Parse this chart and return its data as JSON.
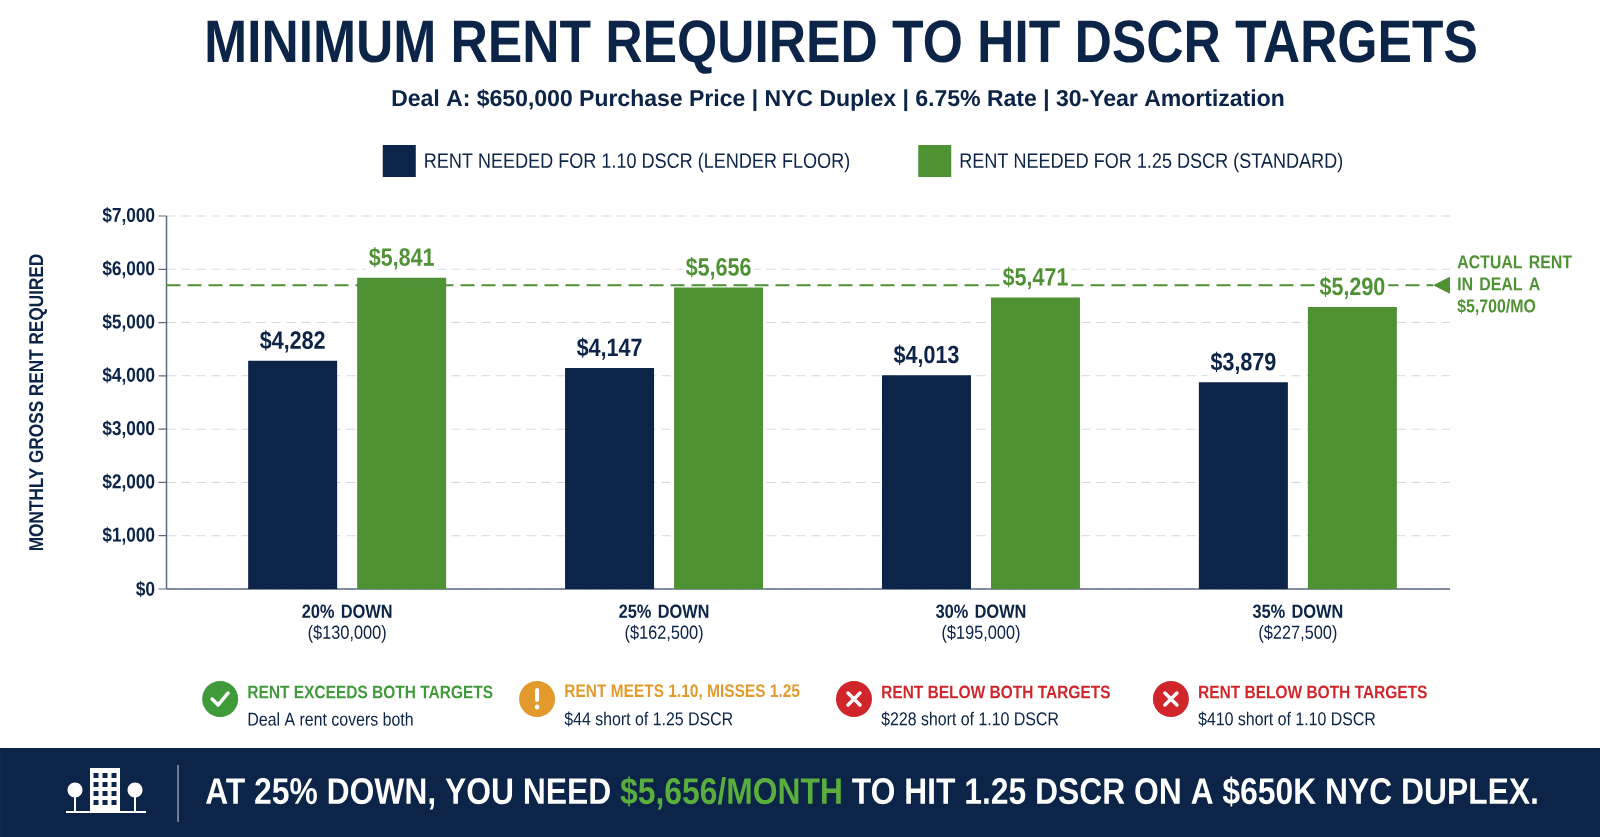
{
  "chart_data": {
    "type": "bar",
    "title": "MINIMUM RENT REQUIRED TO HIT DSCR TARGETS",
    "subtitle": "Deal A: $650,000 Purchase Price | NYC Duplex | 6.75% Rate | 30-Year Amortization",
    "ylabel": "MONTHLY GROSS RENT REQUIRED",
    "categories": [
      "**20% DOWN** ($130,000)",
      "**25% DOWN** ($162,500)",
      "**30% DOWN** ($195,000)",
      "**35% DOWN** ($227,500)"
    ],
    "series": [
      {
        "name": "RENT NEEDED FOR 1.10 DSCR (LENDER FLOOR)",
        "color": "#0b2447",
        "values": [
          4282,
          4147,
          4013,
          3879
        ],
        "value_labels": [
          "$4,282",
          "$4,147",
          "$4,013",
          "$3,879"
        ]
      },
      {
        "name": "RENT NEEDED FOR 1.25 DSCR (STANDARD)",
        "color": "#4e9234",
        "values": [
          5841,
          5656,
          5471,
          5290
        ],
        "value_labels": [
          "$5,841",
          "$5,656",
          "$5,471",
          "$5,290"
        ]
      }
    ],
    "ylim": [
      0,
      7000
    ],
    "yticks": [
      {
        "value": 0,
        "label": "$0"
      },
      {
        "value": 1000,
        "label": "$1,000"
      },
      {
        "value": 2000,
        "label": "$2,000"
      },
      {
        "value": 3000,
        "label": "$3,000"
      },
      {
        "value": 4000,
        "label": "$4,000"
      },
      {
        "value": 5000,
        "label": "$5,000"
      },
      {
        "value": 6000,
        "label": "$6,000"
      },
      {
        "value": 7000,
        "label": "$7,000"
      }
    ],
    "grid": "y",
    "legend": "top",
    "ref_lines": [
      {
        "axis": "y",
        "value": 5700,
        "label": "ACTUAL RENT IN DEAL A $5,700/MO",
        "color": "#4e9234",
        "line_style": "dashed"
      }
    ],
    "annotations": [
      "RENT EXCEEDS BOTH TARGETS",
      "Deal A rent covers both",
      "RENT MEETS 1.10, MISSES 1.25",
      "$44 short of 1.25 DSCR",
      "RENT BELOW BOTH TARGETS",
      "$228 short of 1.10 DSCR",
      "RENT BELOW BOTH TARGETS",
      "$410 short of 1.10 DSCR",
      "AT 25% DOWN, YOU NEED",
      "$5,656/MONTH",
      "TO HIT 1.25 DSCR ON A $650K NYC DUPLEX."
    ]
  }
}
